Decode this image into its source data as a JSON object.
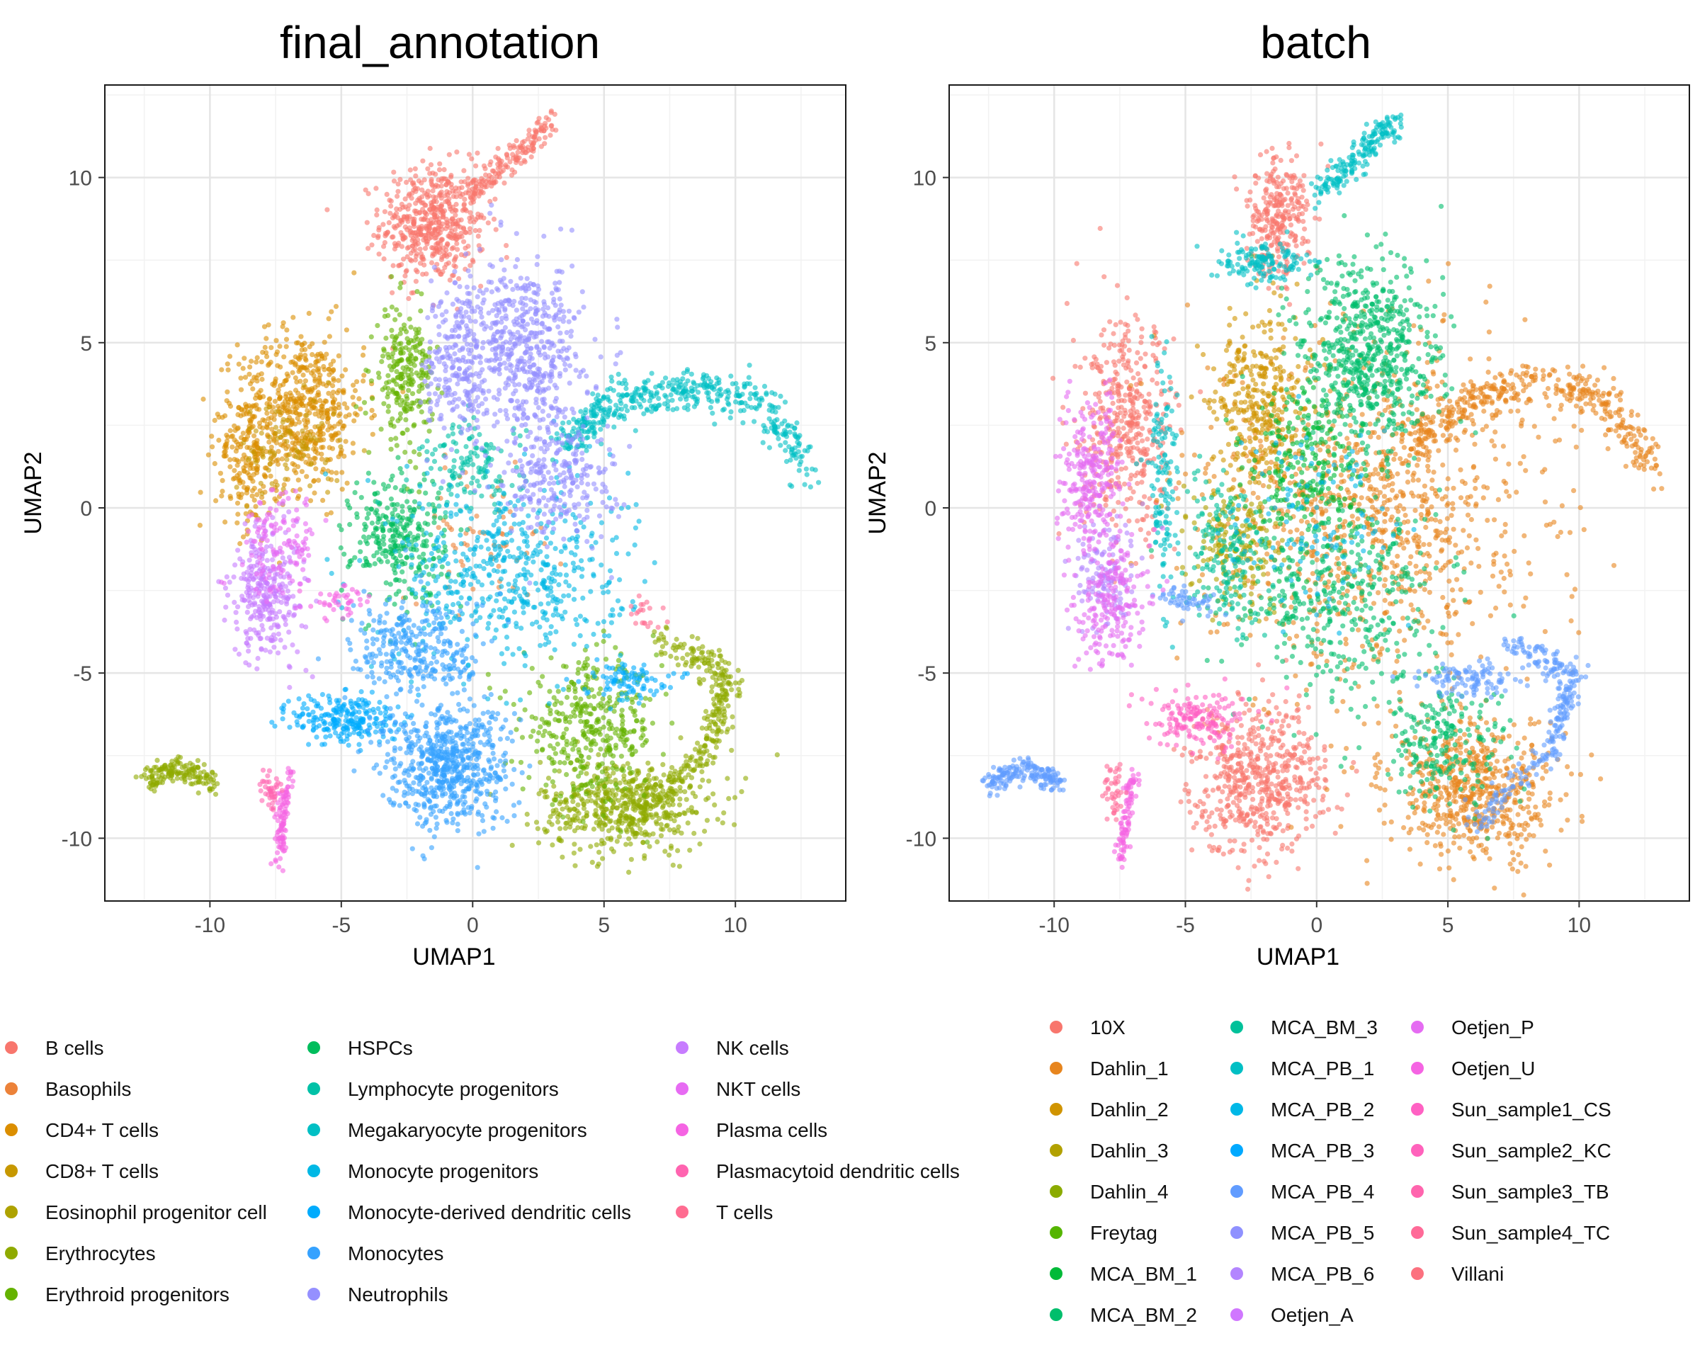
{
  "chart_data": [
    {
      "type": "scatter",
      "title": "final_annotation",
      "xlabel": "UMAP1",
      "ylabel": "UMAP2",
      "xlim": [
        -14,
        14.2
      ],
      "ylim": [
        -11.9,
        12.8
      ],
      "xticks": [
        -10,
        -5,
        0,
        5,
        10
      ],
      "yticks": [
        -10,
        -5,
        0,
        5,
        10
      ],
      "grid": true,
      "legend_position": "bottom",
      "series": [
        {
          "name": "B cells",
          "color": "#F8766D"
        },
        {
          "name": "Basophils",
          "color": "#EC8239"
        },
        {
          "name": "CD4+ T cells",
          "color": "#DB8E00"
        },
        {
          "name": "CD8+ T cells",
          "color": "#C79800"
        },
        {
          "name": "Eosinophil progenitor cell",
          "color": "#AEA200"
        },
        {
          "name": "Erythrocytes",
          "color": "#8FAA00"
        },
        {
          "name": "Erythroid progenitors",
          "color": "#64B200"
        },
        {
          "name": "HSPCs",
          "color": "#00BD5C"
        },
        {
          "name": "Lymphocyte progenitors",
          "color": "#00C1A7"
        },
        {
          "name": "Megakaryocyte progenitors",
          "color": "#00BFC4"
        },
        {
          "name": "Monocyte progenitors",
          "color": "#00B8E5"
        },
        {
          "name": "Monocyte-derived dendritic cells",
          "color": "#00ABFD"
        },
        {
          "name": "Monocytes",
          "color": "#35A2FF"
        },
        {
          "name": "Neutrophils",
          "color": "#9590FF"
        },
        {
          "name": "NK cells",
          "color": "#C77CFF"
        },
        {
          "name": "NKT cells",
          "color": "#E76BF3"
        },
        {
          "name": "Plasma cells",
          "color": "#F564E3"
        },
        {
          "name": "Plasmacytoid dendritic cells",
          "color": "#FF64B0"
        },
        {
          "name": "T cells",
          "color": "#FF6C91"
        }
      ]
    },
    {
      "type": "scatter",
      "title": "batch",
      "xlabel": "UMAP1",
      "ylabel": "UMAP2",
      "xlim": [
        -14,
        14.2
      ],
      "ylim": [
        -11.9,
        12.8
      ],
      "xticks": [
        -10,
        -5,
        0,
        5,
        10
      ],
      "yticks": [
        -10,
        -5,
        0,
        5,
        10
      ],
      "grid": true,
      "legend_position": "bottom",
      "series": [
        {
          "name": "10X",
          "color": "#F8766D"
        },
        {
          "name": "Dahlin_1",
          "color": "#E7851E"
        },
        {
          "name": "Dahlin_2",
          "color": "#D09400"
        },
        {
          "name": "Dahlin_3",
          "color": "#B2A100"
        },
        {
          "name": "Dahlin_4",
          "color": "#8BAB00"
        },
        {
          "name": "Freytag",
          "color": "#55B500"
        },
        {
          "name": "MCA_BM_1",
          "color": "#00BA38"
        },
        {
          "name": "MCA_BM_2",
          "color": "#00BE6C"
        },
        {
          "name": "MCA_BM_3",
          "color": "#00C19A"
        },
        {
          "name": "MCA_PB_1",
          "color": "#00BFC4"
        },
        {
          "name": "MCA_PB_2",
          "color": "#00B8E7"
        },
        {
          "name": "MCA_PB_3",
          "color": "#00A9FF"
        },
        {
          "name": "MCA_PB_4",
          "color": "#619CFF"
        },
        {
          "name": "MCA_PB_5",
          "color": "#8F91FF"
        },
        {
          "name": "MCA_PB_6",
          "color": "#B385FF"
        },
        {
          "name": "Oetjen_A",
          "color": "#D077FF"
        },
        {
          "name": "Oetjen_P",
          "color": "#E56CF2"
        },
        {
          "name": "Oetjen_U",
          "color": "#F564E3"
        },
        {
          "name": "Sun_sample1_CS",
          "color": "#FF61C3"
        },
        {
          "name": "Sun_sample2_KC",
          "color": "#FF62BC"
        },
        {
          "name": "Sun_sample3_TB",
          "color": "#FF65AE"
        },
        {
          "name": "Sun_sample4_TC",
          "color": "#FF6A98"
        },
        {
          "name": "Villani",
          "color": "#FC717F"
        }
      ]
    }
  ]
}
